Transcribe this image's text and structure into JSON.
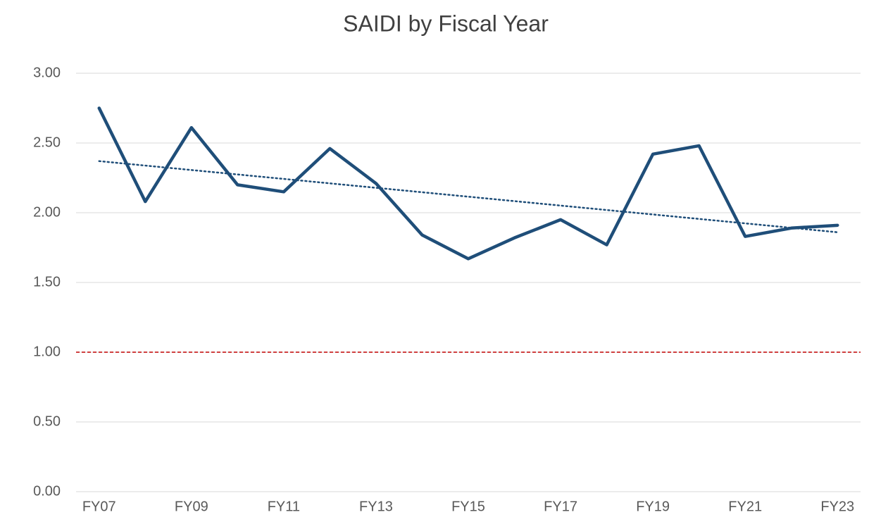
{
  "chart_data": {
    "type": "line",
    "title": "SAIDI by Fiscal Year",
    "categories": [
      "FY07",
      null,
      "FY09",
      null,
      "FY11",
      null,
      "FY13",
      null,
      "FY15",
      null,
      "FY17",
      null,
      "FY19",
      null,
      "FY21",
      null,
      "FY23"
    ],
    "values": [
      2.75,
      2.08,
      2.61,
      2.2,
      2.15,
      2.46,
      2.21,
      1.84,
      1.67,
      1.82,
      1.95,
      1.77,
      2.42,
      2.48,
      1.83,
      1.89,
      1.91
    ],
    "color": "#1f4e79",
    "trendline": {
      "color": "#1f4e79",
      "values": [
        2.37,
        1.86
      ]
    },
    "reference_line": {
      "value": 1,
      "color": "#c00000"
    },
    "ylim": [
      0,
      3
    ],
    "yticks": [
      {
        "value": 0,
        "label": "0.00"
      },
      {
        "value": 0.5,
        "label": "0.50"
      },
      {
        "value": 1,
        "label": "1.00"
      },
      {
        "value": 1.5,
        "label": "1.50"
      },
      {
        "value": 2,
        "label": "2.00"
      },
      {
        "value": 2.5,
        "label": "2.50"
      },
      {
        "value": 3,
        "label": "3.00"
      }
    ],
    "grid": true
  }
}
